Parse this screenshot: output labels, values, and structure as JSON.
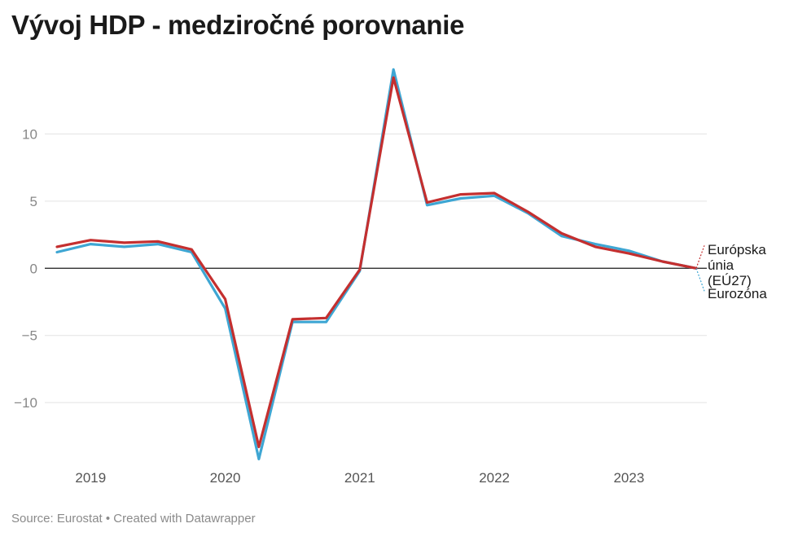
{
  "header": {
    "title": "Vývoj HDP - medziročné porovnanie"
  },
  "footer": {
    "source": "Source: Eurostat • Created with Datawrapper"
  },
  "chart_data": {
    "type": "line",
    "title": "Vývoj HDP - medziročné porovnanie",
    "xlabel": "",
    "ylabel": "",
    "ylim": [
      -14.3,
      15
    ],
    "yticks": [
      10,
      5,
      0,
      -5,
      -10
    ],
    "ytick_labels": [
      "10",
      "5",
      "0",
      "−5",
      "−10"
    ],
    "xticks": [
      2019,
      2020,
      2021,
      2022,
      2023
    ],
    "xtick_labels": [
      "2019",
      "2020",
      "2021",
      "2022",
      "2023"
    ],
    "xlim": [
      2018.75,
      2023.5
    ],
    "grid": true,
    "x": [
      2018.75,
      2019.0,
      2019.25,
      2019.5,
      2019.75,
      2020.0,
      2020.25,
      2020.5,
      2020.75,
      2021.0,
      2021.25,
      2021.5,
      2021.75,
      2022.0,
      2022.25,
      2022.5,
      2022.75,
      2023.0,
      2023.25,
      2023.5
    ],
    "series": [
      {
        "name": "Eurozóna",
        "color": "#3ea6d3",
        "values": [
          1.2,
          1.8,
          1.6,
          1.8,
          1.2,
          -3.0,
          -14.2,
          -4.0,
          -4.0,
          -0.2,
          14.8,
          4.7,
          5.2,
          5.4,
          4.1,
          2.4,
          1.8,
          1.3,
          0.5,
          0.0
        ]
      },
      {
        "name": "Európska únia (EÚ27)",
        "color": "#c42f2f",
        "values": [
          1.6,
          2.1,
          1.9,
          2.0,
          1.4,
          -2.3,
          -13.3,
          -3.8,
          -3.7,
          -0.1,
          14.2,
          4.9,
          5.5,
          5.6,
          4.2,
          2.6,
          1.6,
          1.1,
          0.5,
          0.0
        ]
      }
    ],
    "series_labels": {
      "eu": [
        "Európska",
        "únia",
        "(EÚ27)"
      ],
      "ez": "Eurozóna"
    }
  }
}
